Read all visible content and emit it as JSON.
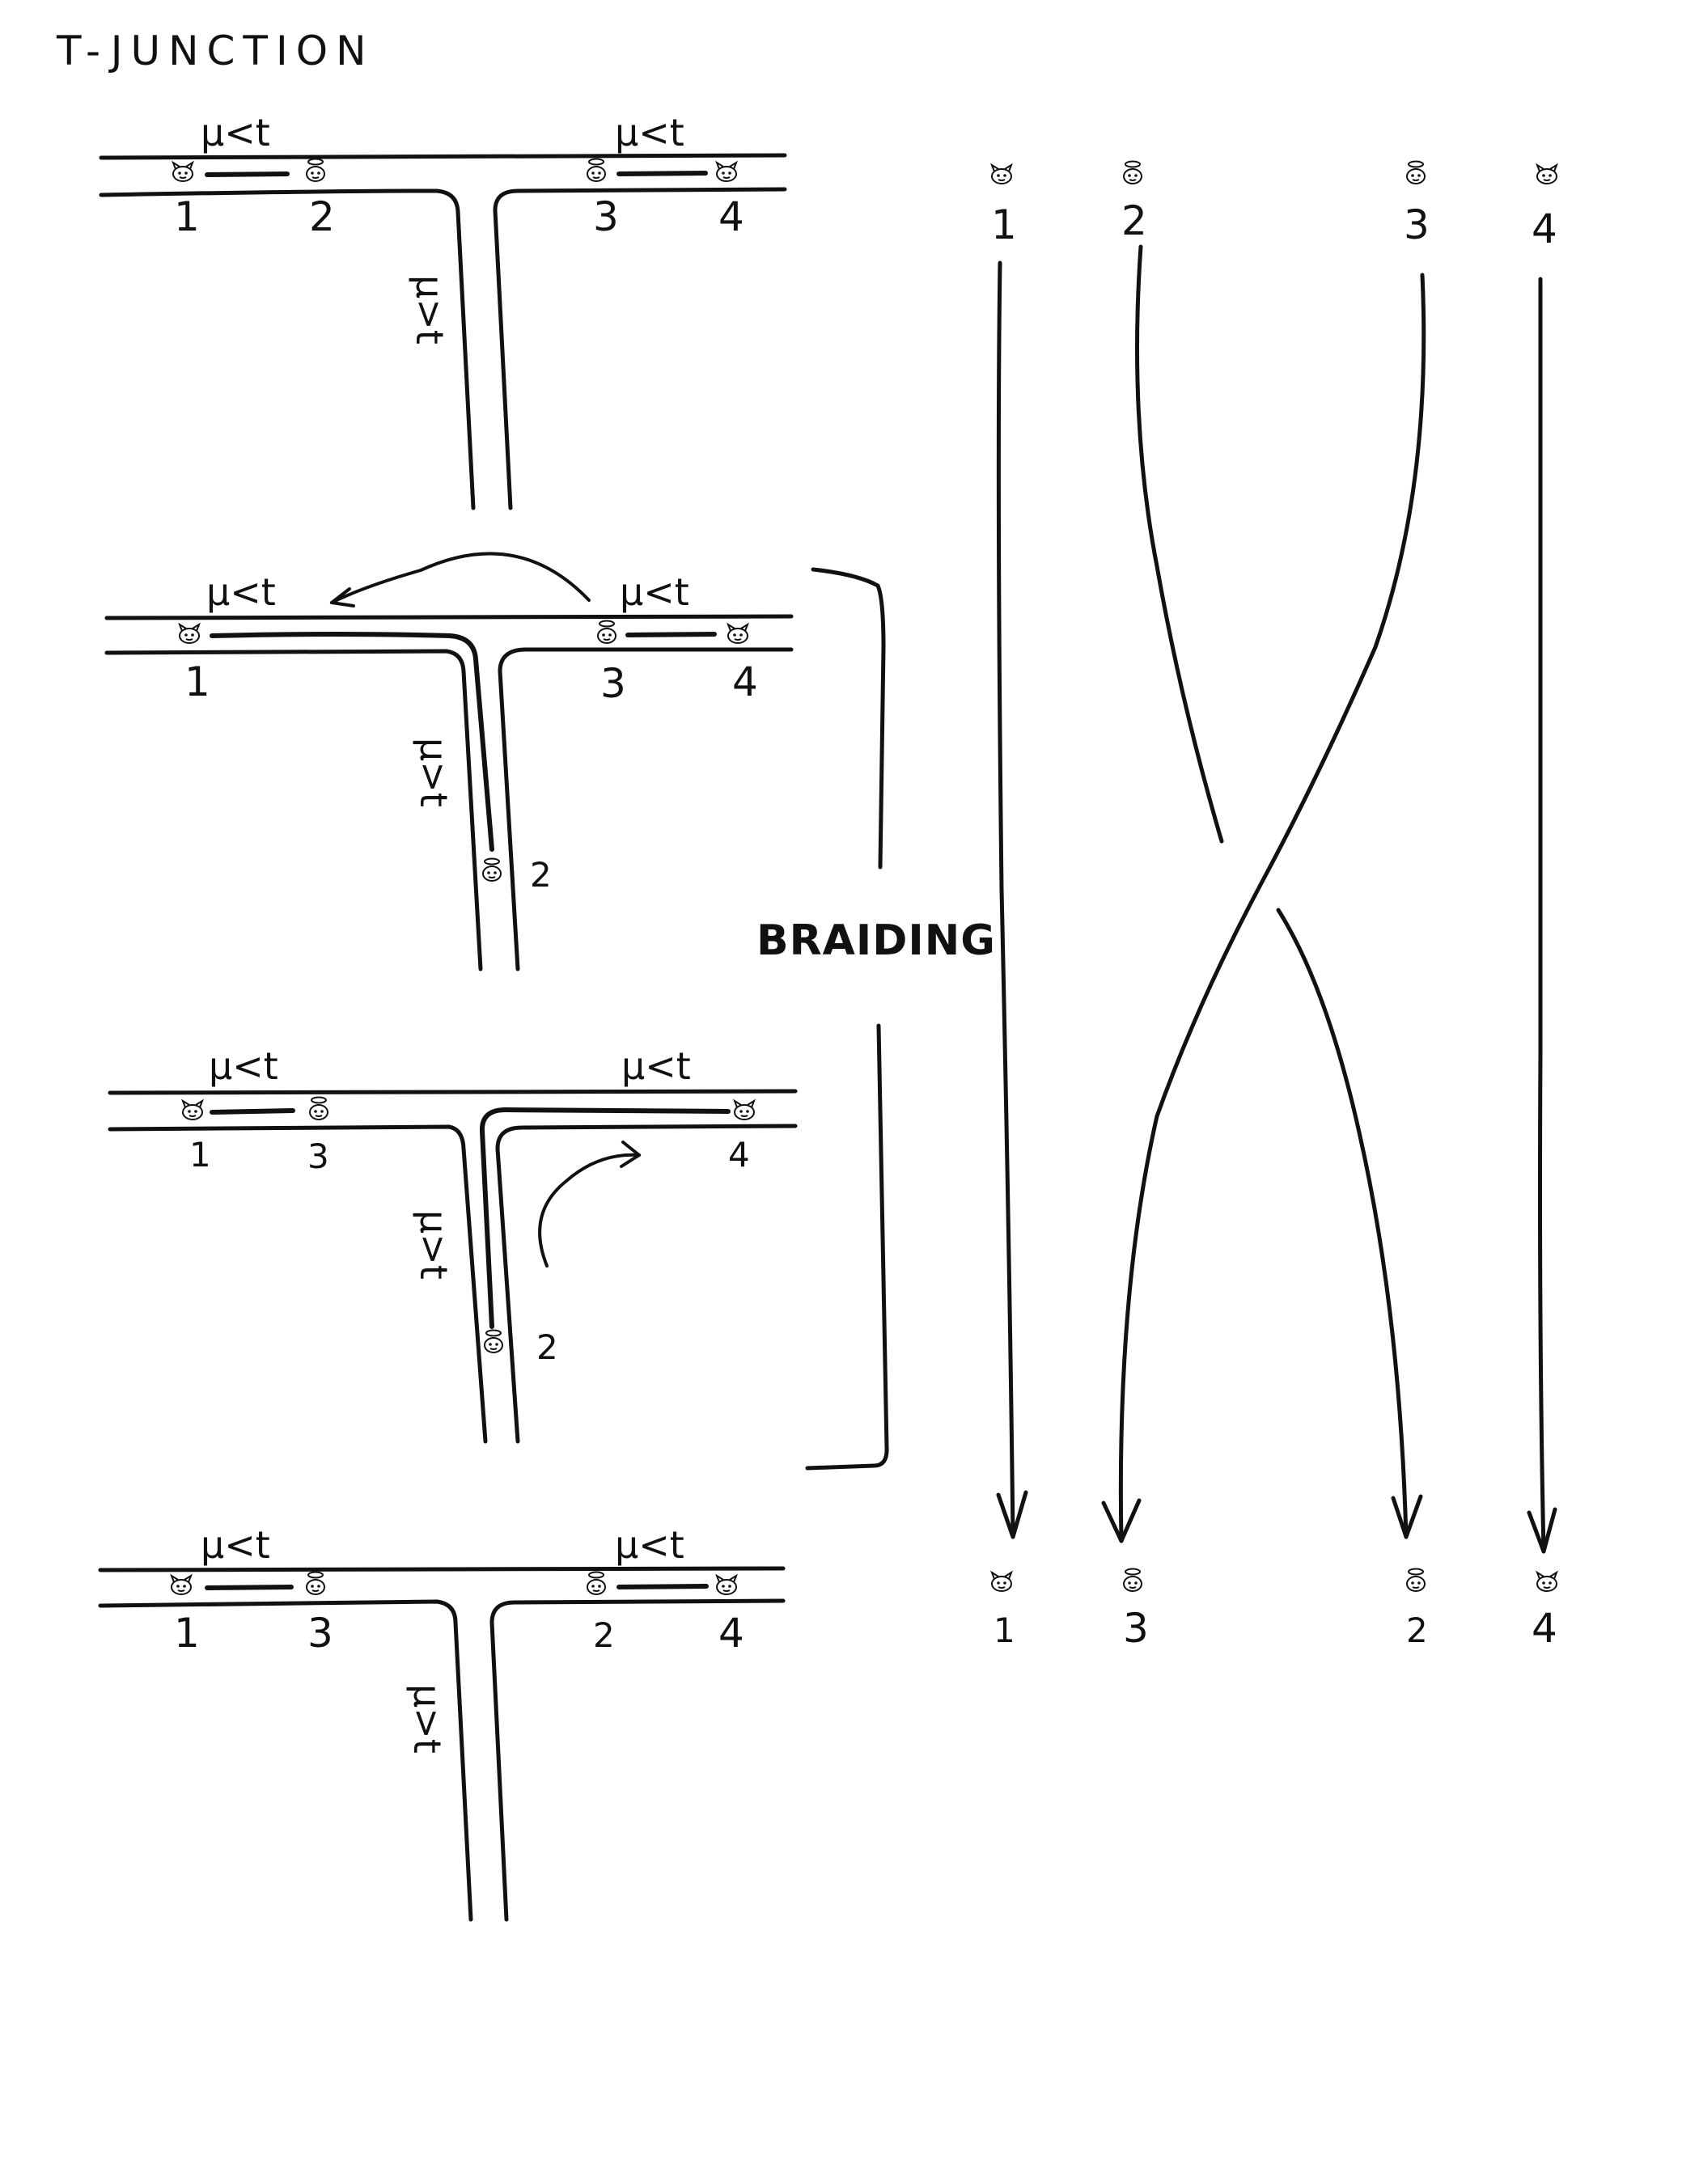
{
  "title": "T-JUNCTION",
  "labels": {
    "horizontal_condition": "μ<t",
    "vertical_condition": "μ>t",
    "braiding": "BRAIDING"
  },
  "panels": [
    {
      "wire_numbers": [
        "1",
        "2",
        "3",
        "4"
      ]
    },
    {
      "wire_numbers": [
        "1",
        "3",
        "4"
      ],
      "moving_number": "2"
    },
    {
      "wire_numbers": [
        "1",
        "3",
        "4"
      ],
      "moving_number": "2"
    },
    {
      "wire_numbers": [
        "1",
        "3",
        "2",
        "4"
      ]
    }
  ],
  "braid": {
    "top_numbers": [
      "1",
      "2",
      "3",
      "4"
    ],
    "bottom_numbers": [
      "1",
      "3",
      "2",
      "4"
    ]
  },
  "icons": {
    "devil": "devil-face-icon",
    "angel": "angel-face-icon"
  },
  "colors": {
    "ink": "#111111",
    "paper": "#ffffff"
  }
}
